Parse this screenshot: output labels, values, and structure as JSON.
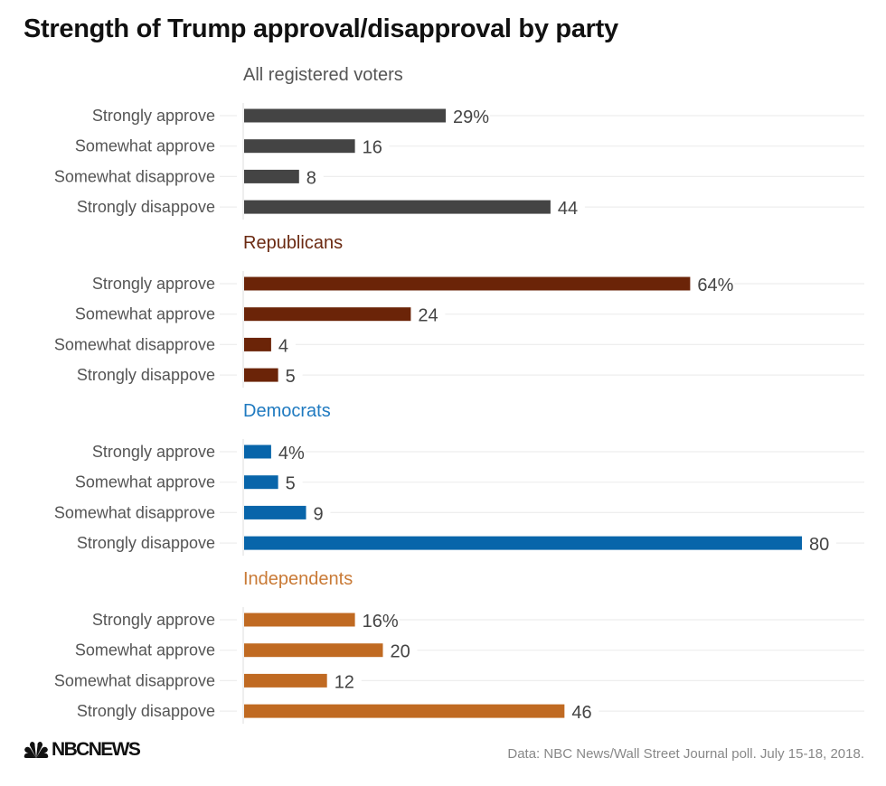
{
  "chart_data": {
    "type": "bar",
    "orientation": "horizontal",
    "title": "Strength of Trump approval/disapproval by party",
    "xlabel": "",
    "ylabel": "",
    "xlim": [
      0,
      80
    ],
    "grid": true,
    "value_suffix_first": "%",
    "categories": [
      "Strongly approve",
      "Somewhat approve",
      "Somewhat disapprove",
      "Strongly disappove"
    ],
    "groups": [
      {
        "name": "All registered voters",
        "color": "#444444",
        "label_color": "#555555",
        "values": [
          29,
          16,
          8,
          44
        ]
      },
      {
        "name": "Republicans",
        "color": "#6b2408",
        "label_color": "#6b2a12",
        "values": [
          64,
          24,
          4,
          5
        ]
      },
      {
        "name": "Democrats",
        "color": "#0865aa",
        "label_color": "#1f7ac0",
        "values": [
          4,
          5,
          9,
          80
        ]
      },
      {
        "name": "Independents",
        "color": "#c06a22",
        "label_color": "#c97a36",
        "values": [
          16,
          20,
          12,
          46
        ]
      }
    ]
  },
  "footer": {
    "logo_text": "NBCNEWS",
    "source": "Data: NBC News/Wall Street Journal poll. July 15-18, 2018."
  }
}
